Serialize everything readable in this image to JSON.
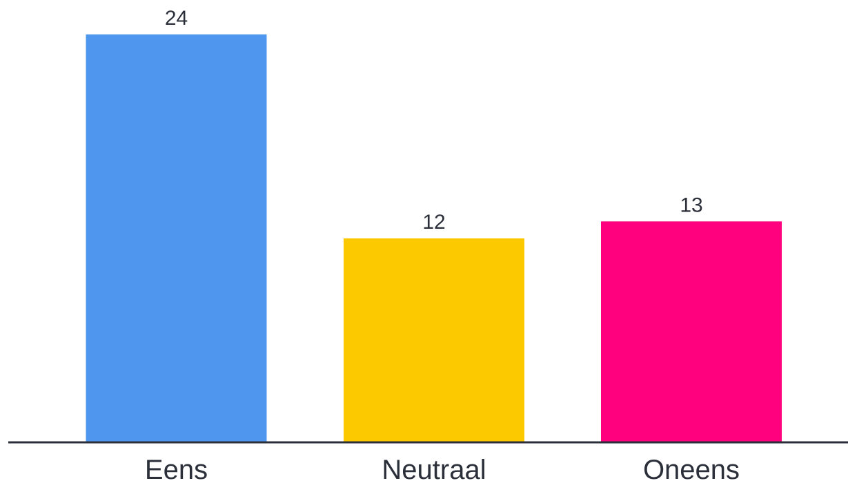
{
  "chart_data": {
    "type": "bar",
    "categories": [
      "Eens",
      "Neutraal",
      "Oneens"
    ],
    "values": [
      24,
      12,
      13
    ],
    "colors": [
      "#4f97ee",
      "#fcc900",
      "#ff007f"
    ],
    "data_labels": [
      "24",
      "12",
      "13"
    ],
    "title": "",
    "xlabel": "",
    "ylabel": "",
    "ylim": [
      0,
      24
    ],
    "grid": false,
    "legend": "none"
  },
  "style": {
    "text_color": "#2b2f3a",
    "axis_color": "#2b2f3a",
    "background": "#ffffff"
  }
}
